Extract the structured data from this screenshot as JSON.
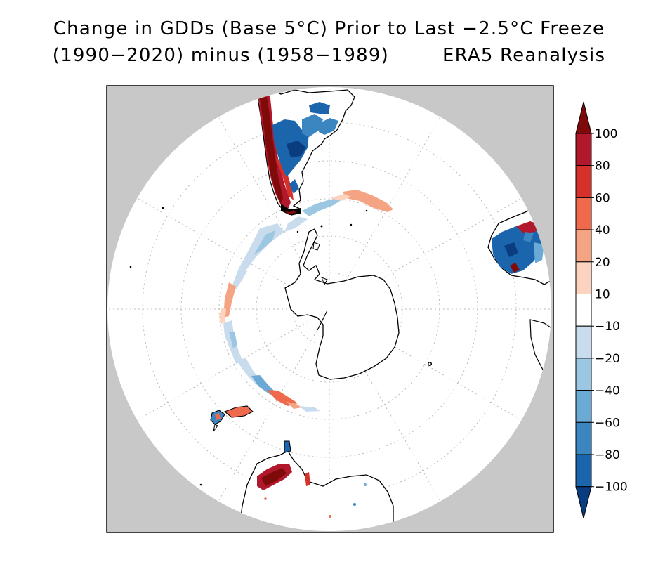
{
  "title": {
    "line1": "Change in GDDs (Base 5°C) Prior to Last −2.5°C Freeze",
    "line2_left": "(1990−2020) minus (1958−1989)",
    "line2_right": "ERA5 Reanalysis"
  },
  "colorbar": {
    "labels": [
      "100",
      "80",
      "60",
      "40",
      "20",
      "10",
      "−10",
      "−20",
      "−40",
      "−60",
      "−80",
      "−100"
    ],
    "colors": {
      "bin_top_triangle": "#7f0a0a",
      "bin_100_80": "#b2182b",
      "bin_80_60": "#d6302a",
      "bin_60_40": "#ef6a4c",
      "bin_40_20": "#f4a483",
      "bin_20_10": "#fcd3be",
      "bin_10_m10": "#ffffff",
      "bin_m10_m20": "#c8dcee",
      "bin_m20_m40": "#9cc7e2",
      "bin_m40_m60": "#6aaad4",
      "bin_m60_m80": "#3b86c1",
      "bin_m80_m100": "#1b65ad",
      "bin_bottom_triangle": "#0a3c80"
    }
  },
  "map": {
    "projection": "south-polar-stereographic",
    "ocean_color": "#ffffff",
    "outside_color": "#c8c8c8"
  }
}
